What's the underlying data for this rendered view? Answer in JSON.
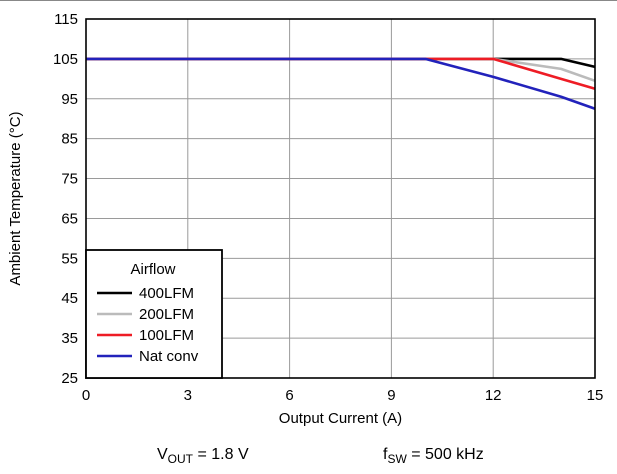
{
  "chart_data": {
    "type": "line",
    "xlabel": "Output Current (A)",
    "ylabel": "Ambient Temperature (°C)",
    "xlim": [
      0,
      15
    ],
    "ylim": [
      25,
      115
    ],
    "xticks": [
      0,
      3,
      6,
      9,
      12,
      15
    ],
    "yticks": [
      25,
      35,
      45,
      55,
      65,
      75,
      85,
      95,
      105,
      115
    ],
    "grid": true,
    "legend_title": "Airflow",
    "legend_position": "bottom-left",
    "series": [
      {
        "name": "400LFM",
        "color": "#000000",
        "x": [
          0,
          14,
          15
        ],
        "y": [
          105,
          105,
          103
        ]
      },
      {
        "name": "200LFM",
        "color": "#bbbbbb",
        "x": [
          0,
          12,
          14,
          15
        ],
        "y": [
          105,
          105,
          102.5,
          99.5
        ]
      },
      {
        "name": "100LFM",
        "color": "#ee1c25",
        "x": [
          0,
          12,
          14,
          15
        ],
        "y": [
          105,
          105,
          100,
          97.5
        ]
      },
      {
        "name": "Nat conv",
        "color": "#2222bb",
        "x": [
          0,
          10,
          12,
          14,
          15
        ],
        "y": [
          105,
          105,
          100.5,
          95.5,
          92.5
        ]
      }
    ]
  },
  "conditions": {
    "vout_symbol": "V",
    "vout_sub": "OUT",
    "vout_value": " = 1.8 V",
    "fsw_symbol": "f",
    "fsw_sub": "SW",
    "fsw_value": " = 500 kHz"
  }
}
